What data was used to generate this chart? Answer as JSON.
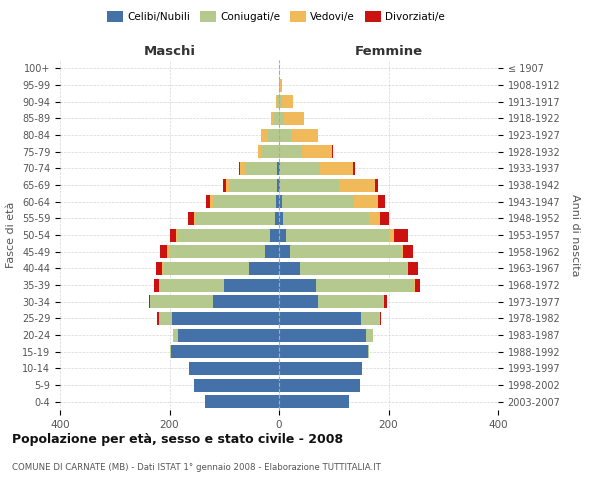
{
  "age_groups": [
    "0-4",
    "5-9",
    "10-14",
    "15-19",
    "20-24",
    "25-29",
    "30-34",
    "35-39",
    "40-44",
    "45-49",
    "50-54",
    "55-59",
    "60-64",
    "65-69",
    "70-74",
    "75-79",
    "80-84",
    "85-89",
    "90-94",
    "95-99",
    "100+"
  ],
  "birth_years": [
    "2003-2007",
    "1998-2002",
    "1993-1997",
    "1988-1992",
    "1983-1987",
    "1978-1982",
    "1973-1977",
    "1968-1972",
    "1963-1967",
    "1958-1962",
    "1953-1957",
    "1948-1952",
    "1943-1947",
    "1938-1942",
    "1933-1937",
    "1928-1932",
    "1923-1927",
    "1918-1922",
    "1913-1917",
    "1908-1912",
    "≤ 1907"
  ],
  "male_celibi": [
    135,
    155,
    165,
    198,
    185,
    195,
    120,
    100,
    55,
    26,
    16,
    8,
    6,
    4,
    3,
    0,
    0,
    0,
    0,
    0,
    0
  ],
  "male_coniugati": [
    0,
    0,
    0,
    2,
    8,
    25,
    115,
    118,
    155,
    175,
    168,
    145,
    115,
    88,
    60,
    32,
    20,
    10,
    3,
    0,
    0
  ],
  "male_vedovi": [
    0,
    0,
    0,
    0,
    0,
    0,
    0,
    2,
    3,
    3,
    4,
    3,
    5,
    5,
    8,
    6,
    12,
    5,
    2,
    0,
    0
  ],
  "male_divorziati": [
    0,
    0,
    0,
    0,
    0,
    2,
    3,
    8,
    12,
    13,
    12,
    10,
    8,
    5,
    2,
    0,
    0,
    0,
    0,
    0,
    0
  ],
  "fem_nubili": [
    128,
    148,
    152,
    162,
    158,
    150,
    72,
    68,
    38,
    20,
    12,
    7,
    5,
    2,
    2,
    0,
    0,
    0,
    0,
    0,
    0
  ],
  "fem_coniugate": [
    0,
    0,
    0,
    3,
    13,
    32,
    118,
    178,
    195,
    202,
    188,
    158,
    132,
    108,
    72,
    42,
    22,
    10,
    5,
    2,
    0
  ],
  "fem_vedove": [
    0,
    0,
    0,
    0,
    0,
    2,
    2,
    2,
    3,
    5,
    10,
    20,
    44,
    65,
    62,
    55,
    50,
    35,
    20,
    3,
    0
  ],
  "fem_divorziate": [
    0,
    0,
    0,
    0,
    0,
    3,
    5,
    10,
    18,
    18,
    25,
    15,
    12,
    5,
    3,
    2,
    0,
    0,
    0,
    0,
    0
  ],
  "color_celibi": "#4472a8",
  "color_coniugati": "#b5c98e",
  "color_vedovi": "#f0b95a",
  "color_divorziati": "#cc1111",
  "title": "Popolazione per età, sesso e stato civile - 2008",
  "subtitle": "COMUNE DI CARNATE (MB) - Dati ISTAT 1° gennaio 2008 - Elaborazione TUTTITALIA.IT",
  "label_maschi": "Maschi",
  "label_femmine": "Femmine",
  "ylabel_left": "Fasce di età",
  "ylabel_right": "Anni di nascita",
  "legend_labels": [
    "Celibi/Nubili",
    "Coniugati/e",
    "Vedovi/e",
    "Divorziati/e"
  ],
  "xlim": 400,
  "bg_color": "#ffffff",
  "grid_color": "#cccccc"
}
